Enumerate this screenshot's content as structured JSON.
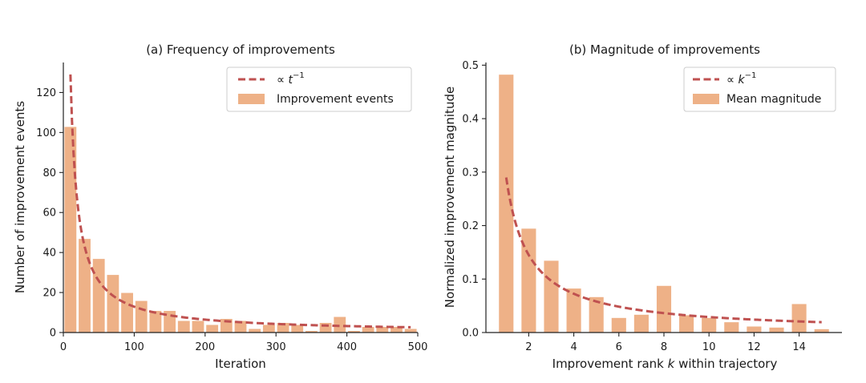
{
  "colors": {
    "bar": "#eeb187",
    "curve": "#bf5150",
    "axis": "#222222",
    "legend_border": "#cccccc"
  },
  "chart_data": [
    {
      "type": "bar",
      "title": "(a) Frequency of improvements",
      "xlabel": "Iteration",
      "ylabel": "Number of improvement events",
      "xlim": [
        0,
        500
      ],
      "ylim": [
        0,
        135
      ],
      "xticks": [
        0,
        100,
        200,
        300,
        400,
        500
      ],
      "yticks": [
        0,
        20,
        40,
        60,
        80,
        100,
        120
      ],
      "bar_width": 17.9,
      "legend_position": "top-right",
      "bars": [
        {
          "x": 10,
          "value": 103
        },
        {
          "x": 30,
          "value": 47
        },
        {
          "x": 50,
          "value": 37
        },
        {
          "x": 70,
          "value": 29
        },
        {
          "x": 90,
          "value": 20
        },
        {
          "x": 110,
          "value": 16
        },
        {
          "x": 130,
          "value": 11
        },
        {
          "x": 150,
          "value": 11
        },
        {
          "x": 170,
          "value": 6
        },
        {
          "x": 190,
          "value": 6
        },
        {
          "x": 210,
          "value": 4
        },
        {
          "x": 230,
          "value": 7
        },
        {
          "x": 250,
          "value": 6
        },
        {
          "x": 270,
          "value": 2
        },
        {
          "x": 290,
          "value": 4
        },
        {
          "x": 310,
          "value": 5
        },
        {
          "x": 330,
          "value": 4
        },
        {
          "x": 350,
          "value": 1
        },
        {
          "x": 370,
          "value": 5
        },
        {
          "x": 390,
          "value": 8
        },
        {
          "x": 410,
          "value": 1
        },
        {
          "x": 430,
          "value": 3
        },
        {
          "x": 450,
          "value": 3
        },
        {
          "x": 470,
          "value": 3
        },
        {
          "x": 490,
          "value": 2
        }
      ],
      "curve": {
        "formula": "a / t",
        "a": 1290,
        "x_from": 10,
        "x_to": 490
      },
      "legend": [
        {
          "kind": "line",
          "prefix": "∝ ",
          "base": "t",
          "sup": "−1"
        },
        {
          "kind": "bar",
          "label": "Improvement events"
        }
      ]
    },
    {
      "type": "bar",
      "title": "(b) Magnitude of improvements",
      "xlabel_prefix": "Improvement rank ",
      "xlabel_var": "k",
      "xlabel_suffix": " within trajectory",
      "ylabel": "Normalized improvement magnitude",
      "xlim": [
        0.1,
        15.9
      ],
      "ylim": [
        0,
        0.505
      ],
      "xticks": [
        2,
        4,
        6,
        8,
        10,
        12,
        14
      ],
      "xtick_labels": [
        "2",
        "4",
        "6",
        "8",
        "10",
        "12",
        "14"
      ],
      "yticks": [
        0.0,
        0.1,
        0.2,
        0.3,
        0.4,
        0.5
      ],
      "ytick_labels": [
        "0.0",
        "0.1",
        "0.2",
        "0.3",
        "0.4",
        "0.5"
      ],
      "bar_width": 0.68,
      "legend_position": "top-right",
      "bars": [
        {
          "x": 1,
          "value": 0.483
        },
        {
          "x": 2,
          "value": 0.195
        },
        {
          "x": 3,
          "value": 0.135
        },
        {
          "x": 4,
          "value": 0.083
        },
        {
          "x": 5,
          "value": 0.067
        },
        {
          "x": 6,
          "value": 0.028
        },
        {
          "x": 7,
          "value": 0.034
        },
        {
          "x": 8,
          "value": 0.088
        },
        {
          "x": 9,
          "value": 0.033
        },
        {
          "x": 10,
          "value": 0.028
        },
        {
          "x": 11,
          "value": 0.02
        },
        {
          "x": 12,
          "value": 0.012
        },
        {
          "x": 13,
          "value": 0.01
        },
        {
          "x": 14,
          "value": 0.054
        },
        {
          "x": 15,
          "value": 0.007
        }
      ],
      "curve": {
        "formula": "a / k",
        "a": 0.29,
        "x_from": 1,
        "x_to": 15
      },
      "legend": [
        {
          "kind": "line",
          "prefix": "∝ ",
          "base": "k",
          "sup": "−1"
        },
        {
          "kind": "bar",
          "label": "Mean magnitude"
        }
      ]
    }
  ]
}
